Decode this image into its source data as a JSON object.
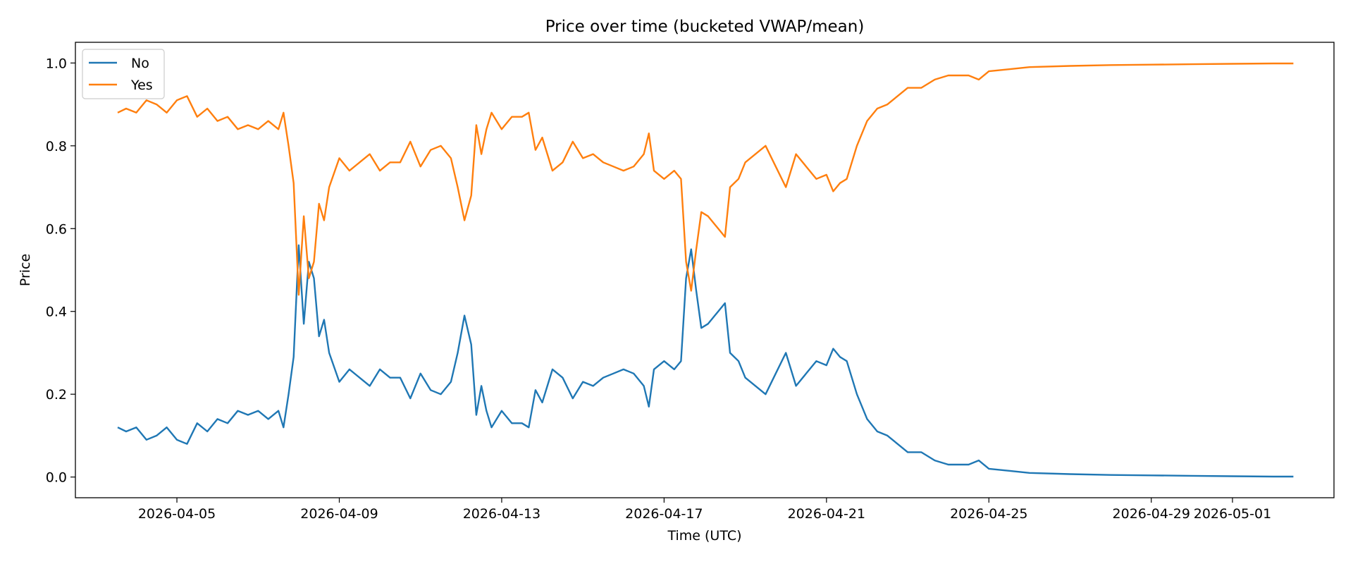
{
  "chart_data": {
    "type": "line",
    "title": "Price over time (bucketed VWAP/mean)",
    "xlabel": "Time (UTC)",
    "ylabel": "Price",
    "x_type": "date",
    "xlim": [
      "2026-04-02T12:00",
      "2026-05-03T12:00"
    ],
    "ylim": [
      -0.05,
      1.05
    ],
    "xticks": [
      "2026-04-05",
      "2026-04-09",
      "2026-04-13",
      "2026-04-17",
      "2026-04-21",
      "2026-04-25",
      "2026-04-29",
      "2026-05-01"
    ],
    "yticks": [
      0.0,
      0.2,
      0.4,
      0.6,
      0.8,
      1.0
    ],
    "ytick_labels": [
      "0.0",
      "0.2",
      "0.4",
      "0.6",
      "0.8",
      "1.0"
    ],
    "grid": false,
    "legend": "top-left",
    "series": [
      {
        "name": "No",
        "color": "#1f77b4",
        "points": [
          [
            "2026-04-03T13:00",
            0.12
          ],
          [
            "2026-04-03T18:00",
            0.11
          ],
          [
            "2026-04-04T00:00",
            0.12
          ],
          [
            "2026-04-04T06:00",
            0.09
          ],
          [
            "2026-04-04T12:00",
            0.1
          ],
          [
            "2026-04-04T18:00",
            0.12
          ],
          [
            "2026-04-05T00:00",
            0.09
          ],
          [
            "2026-04-05T06:00",
            0.08
          ],
          [
            "2026-04-05T12:00",
            0.13
          ],
          [
            "2026-04-05T18:00",
            0.11
          ],
          [
            "2026-04-06T00:00",
            0.14
          ],
          [
            "2026-04-06T06:00",
            0.13
          ],
          [
            "2026-04-06T12:00",
            0.16
          ],
          [
            "2026-04-06T18:00",
            0.15
          ],
          [
            "2026-04-07T00:00",
            0.16
          ],
          [
            "2026-04-07T06:00",
            0.14
          ],
          [
            "2026-04-07T12:00",
            0.16
          ],
          [
            "2026-04-07T15:00",
            0.12
          ],
          [
            "2026-04-07T18:00",
            0.2
          ],
          [
            "2026-04-07T21:00",
            0.29
          ],
          [
            "2026-04-08T00:00",
            0.56
          ],
          [
            "2026-04-08T03:00",
            0.37
          ],
          [
            "2026-04-08T06:00",
            0.52
          ],
          [
            "2026-04-08T09:00",
            0.48
          ],
          [
            "2026-04-08T12:00",
            0.34
          ],
          [
            "2026-04-08T15:00",
            0.38
          ],
          [
            "2026-04-08T18:00",
            0.3
          ],
          [
            "2026-04-09T00:00",
            0.23
          ],
          [
            "2026-04-09T06:00",
            0.26
          ],
          [
            "2026-04-09T12:00",
            0.24
          ],
          [
            "2026-04-09T18:00",
            0.22
          ],
          [
            "2026-04-10T00:00",
            0.26
          ],
          [
            "2026-04-10T06:00",
            0.24
          ],
          [
            "2026-04-10T12:00",
            0.24
          ],
          [
            "2026-04-10T18:00",
            0.19
          ],
          [
            "2026-04-11T00:00",
            0.25
          ],
          [
            "2026-04-11T06:00",
            0.21
          ],
          [
            "2026-04-11T12:00",
            0.2
          ],
          [
            "2026-04-11T18:00",
            0.23
          ],
          [
            "2026-04-11T22:00",
            0.3
          ],
          [
            "2026-04-12T02:00",
            0.39
          ],
          [
            "2026-04-12T06:00",
            0.32
          ],
          [
            "2026-04-12T09:00",
            0.15
          ],
          [
            "2026-04-12T12:00",
            0.22
          ],
          [
            "2026-04-12T15:00",
            0.16
          ],
          [
            "2026-04-12T18:00",
            0.12
          ],
          [
            "2026-04-13T00:00",
            0.16
          ],
          [
            "2026-04-13T06:00",
            0.13
          ],
          [
            "2026-04-13T12:00",
            0.13
          ],
          [
            "2026-04-13T16:00",
            0.12
          ],
          [
            "2026-04-13T20:00",
            0.21
          ],
          [
            "2026-04-14T00:00",
            0.18
          ],
          [
            "2026-04-14T06:00",
            0.26
          ],
          [
            "2026-04-14T12:00",
            0.24
          ],
          [
            "2026-04-14T18:00",
            0.19
          ],
          [
            "2026-04-15T00:00",
            0.23
          ],
          [
            "2026-04-15T06:00",
            0.22
          ],
          [
            "2026-04-15T12:00",
            0.24
          ],
          [
            "2026-04-15T18:00",
            0.25
          ],
          [
            "2026-04-16T00:00",
            0.26
          ],
          [
            "2026-04-16T06:00",
            0.25
          ],
          [
            "2026-04-16T12:00",
            0.22
          ],
          [
            "2026-04-16T15:00",
            0.17
          ],
          [
            "2026-04-16T18:00",
            0.26
          ],
          [
            "2026-04-17T00:00",
            0.28
          ],
          [
            "2026-04-17T06:00",
            0.26
          ],
          [
            "2026-04-17T10:00",
            0.28
          ],
          [
            "2026-04-17T13:00",
            0.48
          ],
          [
            "2026-04-17T16:00",
            0.55
          ],
          [
            "2026-04-17T19:00",
            0.45
          ],
          [
            "2026-04-17T22:00",
            0.36
          ],
          [
            "2026-04-18T02:00",
            0.37
          ],
          [
            "2026-04-18T08:00",
            0.4
          ],
          [
            "2026-04-18T12:00",
            0.42
          ],
          [
            "2026-04-18T15:00",
            0.3
          ],
          [
            "2026-04-18T20:00",
            0.28
          ],
          [
            "2026-04-19T00:00",
            0.24
          ],
          [
            "2026-04-19T06:00",
            0.22
          ],
          [
            "2026-04-19T12:00",
            0.2
          ],
          [
            "2026-04-19T18:00",
            0.25
          ],
          [
            "2026-04-20T00:00",
            0.3
          ],
          [
            "2026-04-20T06:00",
            0.22
          ],
          [
            "2026-04-20T12:00",
            0.25
          ],
          [
            "2026-04-20T18:00",
            0.28
          ],
          [
            "2026-04-21T00:00",
            0.27
          ],
          [
            "2026-04-21T04:00",
            0.31
          ],
          [
            "2026-04-21T08:00",
            0.29
          ],
          [
            "2026-04-21T12:00",
            0.28
          ],
          [
            "2026-04-21T18:00",
            0.2
          ],
          [
            "2026-04-22T00:00",
            0.14
          ],
          [
            "2026-04-22T06:00",
            0.11
          ],
          [
            "2026-04-22T12:00",
            0.1
          ],
          [
            "2026-04-22T18:00",
            0.08
          ],
          [
            "2026-04-23T00:00",
            0.06
          ],
          [
            "2026-04-23T08:00",
            0.06
          ],
          [
            "2026-04-23T16:00",
            0.04
          ],
          [
            "2026-04-24T00:00",
            0.03
          ],
          [
            "2026-04-24T12:00",
            0.03
          ],
          [
            "2026-04-24T18:00",
            0.04
          ],
          [
            "2026-04-25T00:00",
            0.02
          ],
          [
            "2026-04-25T12:00",
            0.015
          ],
          [
            "2026-04-26T00:00",
            0.01
          ],
          [
            "2026-04-27T00:00",
            0.007
          ],
          [
            "2026-04-28T00:00",
            0.005
          ],
          [
            "2026-04-29T00:00",
            0.004
          ],
          [
            "2026-04-30T00:00",
            0.003
          ],
          [
            "2026-05-01T00:00",
            0.002
          ],
          [
            "2026-05-02T00:00",
            0.001
          ],
          [
            "2026-05-02T12:00",
            0.001
          ]
        ]
      },
      {
        "name": "Yes",
        "color": "#ff7f0e",
        "points": [
          [
            "2026-04-03T13:00",
            0.88
          ],
          [
            "2026-04-03T18:00",
            0.89
          ],
          [
            "2026-04-04T00:00",
            0.88
          ],
          [
            "2026-04-04T06:00",
            0.91
          ],
          [
            "2026-04-04T12:00",
            0.9
          ],
          [
            "2026-04-04T18:00",
            0.88
          ],
          [
            "2026-04-05T00:00",
            0.91
          ],
          [
            "2026-04-05T06:00",
            0.92
          ],
          [
            "2026-04-05T12:00",
            0.87
          ],
          [
            "2026-04-05T18:00",
            0.89
          ],
          [
            "2026-04-06T00:00",
            0.86
          ],
          [
            "2026-04-06T06:00",
            0.87
          ],
          [
            "2026-04-06T12:00",
            0.84
          ],
          [
            "2026-04-06T18:00",
            0.85
          ],
          [
            "2026-04-07T00:00",
            0.84
          ],
          [
            "2026-04-07T06:00",
            0.86
          ],
          [
            "2026-04-07T12:00",
            0.84
          ],
          [
            "2026-04-07T15:00",
            0.88
          ],
          [
            "2026-04-07T18:00",
            0.8
          ],
          [
            "2026-04-07T21:00",
            0.71
          ],
          [
            "2026-04-08T00:00",
            0.44
          ],
          [
            "2026-04-08T03:00",
            0.63
          ],
          [
            "2026-04-08T06:00",
            0.48
          ],
          [
            "2026-04-08T09:00",
            0.52
          ],
          [
            "2026-04-08T12:00",
            0.66
          ],
          [
            "2026-04-08T15:00",
            0.62
          ],
          [
            "2026-04-08T18:00",
            0.7
          ],
          [
            "2026-04-09T00:00",
            0.77
          ],
          [
            "2026-04-09T06:00",
            0.74
          ],
          [
            "2026-04-09T12:00",
            0.76
          ],
          [
            "2026-04-09T18:00",
            0.78
          ],
          [
            "2026-04-10T00:00",
            0.74
          ],
          [
            "2026-04-10T06:00",
            0.76
          ],
          [
            "2026-04-10T12:00",
            0.76
          ],
          [
            "2026-04-10T18:00",
            0.81
          ],
          [
            "2026-04-11T00:00",
            0.75
          ],
          [
            "2026-04-11T06:00",
            0.79
          ],
          [
            "2026-04-11T12:00",
            0.8
          ],
          [
            "2026-04-11T18:00",
            0.77
          ],
          [
            "2026-04-11T22:00",
            0.7
          ],
          [
            "2026-04-12T02:00",
            0.62
          ],
          [
            "2026-04-12T06:00",
            0.68
          ],
          [
            "2026-04-12T09:00",
            0.85
          ],
          [
            "2026-04-12T12:00",
            0.78
          ],
          [
            "2026-04-12T15:00",
            0.84
          ],
          [
            "2026-04-12T18:00",
            0.88
          ],
          [
            "2026-04-13T00:00",
            0.84
          ],
          [
            "2026-04-13T06:00",
            0.87
          ],
          [
            "2026-04-13T12:00",
            0.87
          ],
          [
            "2026-04-13T16:00",
            0.88
          ],
          [
            "2026-04-13T20:00",
            0.79
          ],
          [
            "2026-04-14T00:00",
            0.82
          ],
          [
            "2026-04-14T06:00",
            0.74
          ],
          [
            "2026-04-14T12:00",
            0.76
          ],
          [
            "2026-04-14T18:00",
            0.81
          ],
          [
            "2026-04-15T00:00",
            0.77
          ],
          [
            "2026-04-15T06:00",
            0.78
          ],
          [
            "2026-04-15T12:00",
            0.76
          ],
          [
            "2026-04-15T18:00",
            0.75
          ],
          [
            "2026-04-16T00:00",
            0.74
          ],
          [
            "2026-04-16T06:00",
            0.75
          ],
          [
            "2026-04-16T12:00",
            0.78
          ],
          [
            "2026-04-16T15:00",
            0.83
          ],
          [
            "2026-04-16T18:00",
            0.74
          ],
          [
            "2026-04-17T00:00",
            0.72
          ],
          [
            "2026-04-17T06:00",
            0.74
          ],
          [
            "2026-04-17T10:00",
            0.72
          ],
          [
            "2026-04-17T13:00",
            0.52
          ],
          [
            "2026-04-17T16:00",
            0.45
          ],
          [
            "2026-04-17T19:00",
            0.55
          ],
          [
            "2026-04-17T22:00",
            0.64
          ],
          [
            "2026-04-18T02:00",
            0.63
          ],
          [
            "2026-04-18T08:00",
            0.6
          ],
          [
            "2026-04-18T12:00",
            0.58
          ],
          [
            "2026-04-18T15:00",
            0.7
          ],
          [
            "2026-04-18T20:00",
            0.72
          ],
          [
            "2026-04-19T00:00",
            0.76
          ],
          [
            "2026-04-19T06:00",
            0.78
          ],
          [
            "2026-04-19T12:00",
            0.8
          ],
          [
            "2026-04-19T18:00",
            0.75
          ],
          [
            "2026-04-20T00:00",
            0.7
          ],
          [
            "2026-04-20T06:00",
            0.78
          ],
          [
            "2026-04-20T12:00",
            0.75
          ],
          [
            "2026-04-20T18:00",
            0.72
          ],
          [
            "2026-04-21T00:00",
            0.73
          ],
          [
            "2026-04-21T04:00",
            0.69
          ],
          [
            "2026-04-21T08:00",
            0.71
          ],
          [
            "2026-04-21T12:00",
            0.72
          ],
          [
            "2026-04-21T18:00",
            0.8
          ],
          [
            "2026-04-22T00:00",
            0.86
          ],
          [
            "2026-04-22T06:00",
            0.89
          ],
          [
            "2026-04-22T12:00",
            0.9
          ],
          [
            "2026-04-22T18:00",
            0.92
          ],
          [
            "2026-04-23T00:00",
            0.94
          ],
          [
            "2026-04-23T08:00",
            0.94
          ],
          [
            "2026-04-23T16:00",
            0.96
          ],
          [
            "2026-04-24T00:00",
            0.97
          ],
          [
            "2026-04-24T12:00",
            0.97
          ],
          [
            "2026-04-24T18:00",
            0.96
          ],
          [
            "2026-04-25T00:00",
            0.98
          ],
          [
            "2026-04-25T12:00",
            0.985
          ],
          [
            "2026-04-26T00:00",
            0.99
          ],
          [
            "2026-04-27T00:00",
            0.993
          ],
          [
            "2026-04-28T00:00",
            0.995
          ],
          [
            "2026-04-29T00:00",
            0.996
          ],
          [
            "2026-04-30T00:00",
            0.997
          ],
          [
            "2026-05-01T00:00",
            0.998
          ],
          [
            "2026-05-02T00:00",
            0.999
          ],
          [
            "2026-05-02T12:00",
            0.999
          ]
        ]
      }
    ]
  }
}
